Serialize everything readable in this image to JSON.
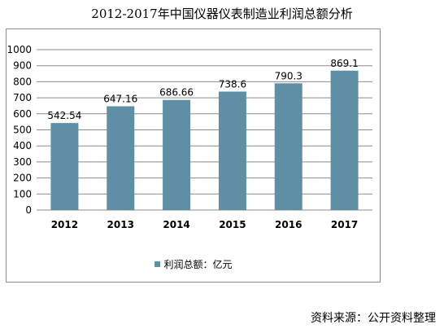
{
  "chart_data": {
    "type": "bar",
    "title": "2012-2017年中国仪器仪表制造业利润总额分析",
    "categories": [
      "2012",
      "2013",
      "2014",
      "2015",
      "2016",
      "2017"
    ],
    "series": [
      {
        "name": "利润总额：亿元",
        "values": [
          542.54,
          647.16,
          686.66,
          738.6,
          790.3,
          869.1
        ],
        "labels": [
          "542.54",
          "647.16",
          "686.66",
          "738.6",
          "790.3",
          "869.1"
        ],
        "color": "#5f8fa4"
      }
    ],
    "ylim": [
      0,
      1000
    ],
    "yticks": [
      0,
      100,
      200,
      300,
      400,
      500,
      600,
      700,
      800,
      900,
      1000
    ],
    "grid": true,
    "legend": "bottom"
  },
  "source": "资料来源：公开资料整理"
}
